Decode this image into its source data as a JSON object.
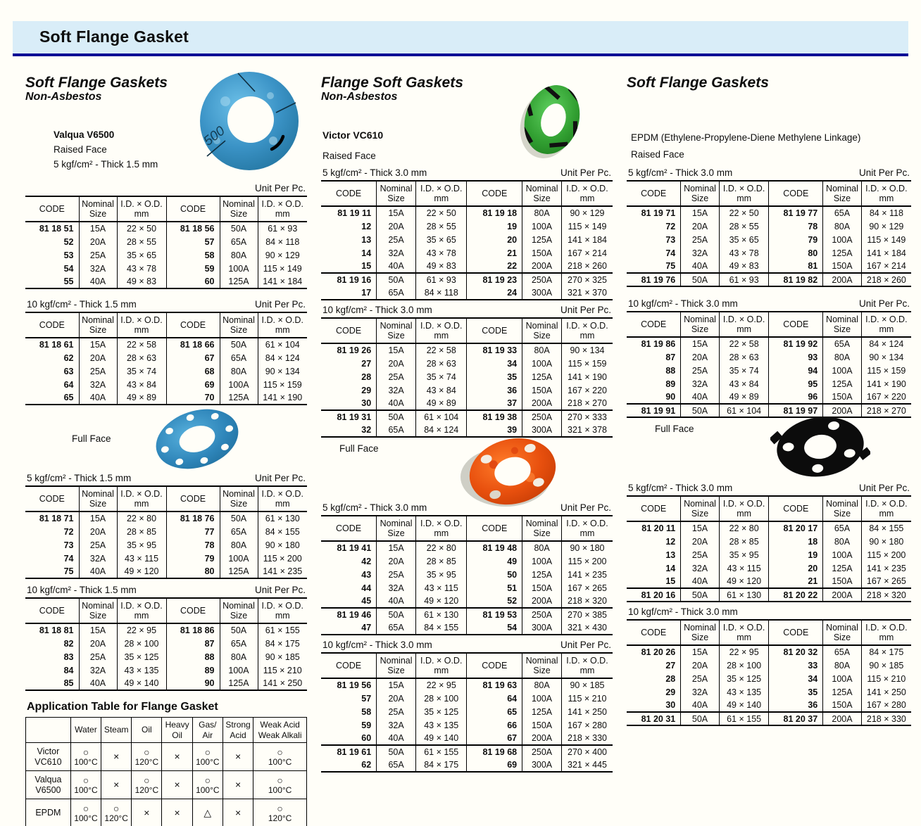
{
  "header": {
    "title": "Soft Flange Gasket"
  },
  "labels": {
    "unit_per_pc": "Unit Per Pc.",
    "full_face": "Full Face"
  },
  "table_headers": {
    "code": "CODE",
    "size": [
      "Nominal",
      "Size"
    ],
    "dim": [
      "I.D. × O.D.",
      "mm"
    ]
  },
  "colors": {
    "header_bg": "#d9edf8",
    "header_underline": "#0a0a96",
    "gasket_blue": "#3b93c6",
    "gasket_green": "#3aa53a",
    "gasket_orange": "#e8500e",
    "gasket_black": "#0c0c0c"
  },
  "columns": {
    "left": {
      "title": "Soft Flange Gaskets",
      "subtitle": "Non-Asbestos",
      "product": "Valqua V6500",
      "face": "Raised Face",
      "spec": "5 kgf/cm² - Thick 1.5 mm",
      "sections": [
        {
          "groups": [
            [
              [
                "81 18 51",
                "15A",
                "22 × 50",
                "81 18 56",
                "50A",
                "61 × 93"
              ],
              [
                "52",
                "20A",
                "28 × 55",
                "57",
                "65A",
                "84 × 118"
              ],
              [
                "53",
                "25A",
                "35 × 65",
                "58",
                "80A",
                "90 × 129"
              ],
              [
                "54",
                "32A",
                "43 × 78",
                "59",
                "100A",
                "115 × 149"
              ],
              [
                "55",
                "40A",
                "49 × 83",
                "60",
                "125A",
                "141 × 184"
              ]
            ]
          ]
        },
        {
          "spec": "10 kgf/cm² - Thick 1.5 mm",
          "groups": [
            [
              [
                "81 18 61",
                "15A",
                "22 × 58",
                "81 18 66",
                "50A",
                "61 × 104"
              ],
              [
                "62",
                "20A",
                "28 × 63",
                "67",
                "65A",
                "84 × 124"
              ],
              [
                "63",
                "25A",
                "35 × 74",
                "68",
                "80A",
                "90 × 134"
              ],
              [
                "64",
                "32A",
                "43 × 84",
                "69",
                "100A",
                "115 × 159"
              ],
              [
                "65",
                "40A",
                "49 × 89",
                "70",
                "125A",
                "141 × 190"
              ]
            ]
          ]
        },
        {
          "spec": "5 kgf/cm² - Thick 1.5 mm",
          "groups": [
            [
              [
                "81 18 71",
                "15A",
                "22 × 80",
                "81 18 76",
                "50A",
                "61 × 130"
              ],
              [
                "72",
                "20A",
                "28 × 85",
                "77",
                "65A",
                "84 × 155"
              ],
              [
                "73",
                "25A",
                "35 × 95",
                "78",
                "80A",
                "90 × 180"
              ],
              [
                "74",
                "32A",
                "43 × 115",
                "79",
                "100A",
                "115 × 200"
              ],
              [
                "75",
                "40A",
                "49 × 120",
                "80",
                "125A",
                "141 × 235"
              ]
            ]
          ]
        },
        {
          "spec": "10 kgf/cm² - Thick 1.5 mm",
          "groups": [
            [
              [
                "81 18 81",
                "15A",
                "22 × 95",
                "81 18 86",
                "50A",
                "61 × 155"
              ],
              [
                "82",
                "20A",
                "28 × 100",
                "87",
                "65A",
                "84 × 175"
              ],
              [
                "83",
                "25A",
                "35 × 125",
                "88",
                "80A",
                "90 × 185"
              ],
              [
                "84",
                "32A",
                "43 × 135",
                "89",
                "100A",
                "115 × 210"
              ],
              [
                "85",
                "40A",
                "49 × 140",
                "90",
                "125A",
                "141 × 250"
              ]
            ]
          ]
        }
      ]
    },
    "mid": {
      "title": "Flange Soft Gaskets",
      "subtitle": "Non-Asbestos",
      "product": "Victor VC610",
      "face": "Raised Face",
      "spec": "5 kgf/cm² - Thick 3.0 mm",
      "sections": [
        {
          "groups": [
            [
              [
                "81 19 11",
                "15A",
                "22 × 50",
                "81 19 18",
                "80A",
                "90 × 129"
              ],
              [
                "12",
                "20A",
                "28 × 55",
                "19",
                "100A",
                "115 × 149"
              ],
              [
                "13",
                "25A",
                "35 × 65",
                "20",
                "125A",
                "141 × 184"
              ],
              [
                "14",
                "32A",
                "43 × 78",
                "21",
                "150A",
                "167 × 214"
              ],
              [
                "15",
                "40A",
                "49 × 83",
                "22",
                "200A",
                "218 × 260"
              ]
            ],
            [
              [
                "81 19 16",
                "50A",
                "61 × 93",
                "81 19 23",
                "250A",
                "270 × 325"
              ],
              [
                "17",
                "65A",
                "84 × 118",
                "24",
                "300A",
                "321 × 370"
              ]
            ]
          ]
        },
        {
          "spec": "10 kgf/cm² - Thick 3.0 mm",
          "groups": [
            [
              [
                "81 19 26",
                "15A",
                "22 × 58",
                "81 19 33",
                "80A",
                "90 × 134"
              ],
              [
                "27",
                "20A",
                "28 × 63",
                "34",
                "100A",
                "115 × 159"
              ],
              [
                "28",
                "25A",
                "35 × 74",
                "35",
                "125A",
                "141 × 190"
              ],
              [
                "29",
                "32A",
                "43 × 84",
                "36",
                "150A",
                "167 × 220"
              ],
              [
                "30",
                "40A",
                "49 × 89",
                "37",
                "200A",
                "218 × 270"
              ]
            ],
            [
              [
                "81 19 31",
                "50A",
                "61 × 104",
                "81 19 38",
                "250A",
                "270 × 333"
              ],
              [
                "32",
                "65A",
                "84 × 124",
                "39",
                "300A",
                "321 × 378"
              ]
            ]
          ]
        },
        {
          "spec": "5 kgf/cm² - Thick 3.0 mm",
          "groups": [
            [
              [
                "81 19 41",
                "15A",
                "22 × 80",
                "81 19 48",
                "80A",
                "90 × 180"
              ],
              [
                "42",
                "20A",
                "28 × 85",
                "49",
                "100A",
                "115 × 200"
              ],
              [
                "43",
                "25A",
                "35 × 95",
                "50",
                "125A",
                "141 × 235"
              ],
              [
                "44",
                "32A",
                "43 × 115",
                "51",
                "150A",
                "167 × 265"
              ],
              [
                "45",
                "40A",
                "49 × 120",
                "52",
                "200A",
                "218 × 320"
              ]
            ],
            [
              [
                "81 19 46",
                "50A",
                "61 × 130",
                "81 19 53",
                "250A",
                "270 × 385"
              ],
              [
                "47",
                "65A",
                "84 × 155",
                "54",
                "300A",
                "321 × 430"
              ]
            ]
          ]
        },
        {
          "spec": "10 kgf/cm² - Thick 3.0 mm",
          "groups": [
            [
              [
                "81 19 56",
                "15A",
                "22 × 95",
                "81 19 63",
                "80A",
                "90 × 185"
              ],
              [
                "57",
                "20A",
                "28 × 100",
                "64",
                "100A",
                "115 × 210"
              ],
              [
                "58",
                "25A",
                "35 × 125",
                "65",
                "125A",
                "141 × 250"
              ],
              [
                "59",
                "32A",
                "43 × 135",
                "66",
                "150A",
                "167 × 280"
              ],
              [
                "60",
                "40A",
                "49 × 140",
                "67",
                "200A",
                "218 × 330"
              ]
            ],
            [
              [
                "81 19 61",
                "50A",
                "61 × 155",
                "81 19 68",
                "250A",
                "270 × 400"
              ],
              [
                "62",
                "65A",
                "84 × 175",
                "69",
                "300A",
                "321 × 445"
              ]
            ]
          ]
        }
      ]
    },
    "right": {
      "title": "Soft Flange Gaskets",
      "product": "EPDM (Ethylene-Propylene-Diene Methylene Linkage)",
      "face": "Raised Face",
      "spec": "5 kgf/cm² - Thick 3.0 mm",
      "sections": [
        {
          "groups": [
            [
              [
                "81 19 71",
                "15A",
                "22 × 50",
                "81 19 77",
                "65A",
                "84 × 118"
              ],
              [
                "72",
                "20A",
                "28 × 55",
                "78",
                "80A",
                "90 × 129"
              ],
              [
                "73",
                "25A",
                "35 × 65",
                "79",
                "100A",
                "115 × 149"
              ],
              [
                "74",
                "32A",
                "43 × 78",
                "80",
                "125A",
                "141 × 184"
              ],
              [
                "75",
                "40A",
                "49 × 83",
                "81",
                "150A",
                "167 × 214"
              ]
            ],
            [
              [
                "81 19 76",
                "50A",
                "61 × 93",
                "81 19 82",
                "200A",
                "218 × 260"
              ]
            ]
          ]
        },
        {
          "spec": "10 kgf/cm² - Thick 3.0 mm",
          "groups": [
            [
              [
                "81 19 86",
                "15A",
                "22 × 58",
                "81 19 92",
                "65A",
                "84 × 124"
              ],
              [
                "87",
                "20A",
                "28 × 63",
                "93",
                "80A",
                "90 × 134"
              ],
              [
                "88",
                "25A",
                "35 × 74",
                "94",
                "100A",
                "115 × 159"
              ],
              [
                "89",
                "32A",
                "43 × 84",
                "95",
                "125A",
                "141 × 190"
              ],
              [
                "90",
                "40A",
                "49 × 89",
                "96",
                "150A",
                "167 × 220"
              ]
            ],
            [
              [
                "81 19 91",
                "50A",
                "61 × 104",
                "81 19 97",
                "200A",
                "218 × 270"
              ]
            ]
          ]
        },
        {
          "spec": "5 kgf/cm² - Thick 3.0 mm",
          "groups": [
            [
              [
                "81 20 11",
                "15A",
                "22 × 80",
                "81 20 17",
                "65A",
                "84 × 155"
              ],
              [
                "12",
                "20A",
                "28 × 85",
                "18",
                "80A",
                "90 × 180"
              ],
              [
                "13",
                "25A",
                "35 × 95",
                "19",
                "100A",
                "115 × 200"
              ],
              [
                "14",
                "32A",
                "43 × 115",
                "20",
                "125A",
                "141 × 235"
              ],
              [
                "15",
                "40A",
                "49 × 120",
                "21",
                "150A",
                "167 × 265"
              ]
            ],
            [
              [
                "81 20 16",
                "50A",
                "61 × 130",
                "81 20 22",
                "200A",
                "218 × 320"
              ]
            ]
          ]
        },
        {
          "spec": "10 kgf/cm² - Thick 3.0 mm",
          "groups": [
            [
              [
                "81 20 26",
                "15A",
                "22 × 95",
                "81 20 32",
                "65A",
                "84 × 175"
              ],
              [
                "27",
                "20A",
                "28 × 100",
                "33",
                "80A",
                "90 × 185"
              ],
              [
                "28",
                "25A",
                "35 × 125",
                "34",
                "100A",
                "115 × 210"
              ],
              [
                "29",
                "32A",
                "43 × 135",
                "35",
                "125A",
                "141 × 250"
              ],
              [
                "30",
                "40A",
                "49 × 140",
                "36",
                "150A",
                "167 × 280"
              ]
            ],
            [
              [
                "81 20 31",
                "50A",
                "61 × 155",
                "81 20 37",
                "200A",
                "218 × 330"
              ]
            ]
          ]
        }
      ]
    }
  },
  "app_table": {
    "title": "Application Table for Flange Gasket",
    "headers": [
      "Water",
      "Steam",
      "Oil",
      "Heavy\nOil",
      "Gas/\nAir",
      "Strong\nAcid",
      "Weak Acid\nWeak Alkali"
    ],
    "rows": [
      {
        "label": "Victor\nVC610",
        "cells": [
          [
            "○",
            "100°C"
          ],
          [
            "×",
            ""
          ],
          [
            "○",
            "120°C"
          ],
          [
            "×",
            ""
          ],
          [
            "○",
            "100°C"
          ],
          [
            "×",
            ""
          ],
          [
            "○",
            "100°C"
          ]
        ]
      },
      {
        "label": "Valqua\nV6500",
        "cells": [
          [
            "○",
            "100°C"
          ],
          [
            "×",
            ""
          ],
          [
            "○",
            "120°C"
          ],
          [
            "×",
            ""
          ],
          [
            "○",
            "100°C"
          ],
          [
            "×",
            ""
          ],
          [
            "○",
            "100°C"
          ]
        ]
      },
      {
        "label": "EPDM",
        "cells": [
          [
            "○",
            "100°C"
          ],
          [
            "○",
            "120°C"
          ],
          [
            "×",
            ""
          ],
          [
            "×",
            ""
          ],
          [
            "△",
            ""
          ],
          [
            "×",
            ""
          ],
          [
            "○",
            "120°C"
          ]
        ]
      }
    ]
  }
}
